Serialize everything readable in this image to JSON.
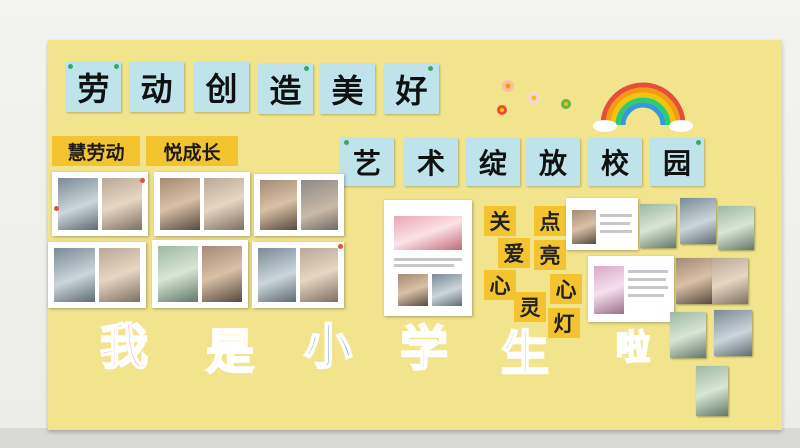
{
  "main_title": [
    "劳",
    "动",
    "创",
    "造",
    "美",
    "好"
  ],
  "sub_title": [
    "艺",
    "术",
    "绽",
    "放",
    "校",
    "园"
  ],
  "labels": {
    "left": "慧劳动",
    "right": "悦成长"
  },
  "heart_lamp": [
    "关",
    "点",
    "爱",
    "亮",
    "心",
    "心",
    "灵",
    "灯"
  ],
  "big_chars": [
    "我",
    "是",
    "小",
    "学",
    "生",
    "啦"
  ],
  "colors": {
    "board": "#f2e48c",
    "title_card": "#bfe3ea",
    "gold": "#f4c430"
  }
}
